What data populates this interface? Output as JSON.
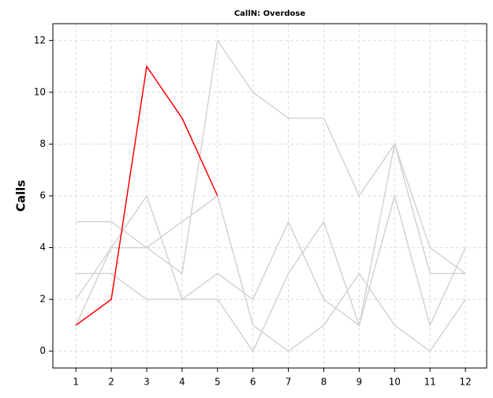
{
  "chart_data": {
    "type": "line",
    "title": "CallN: Overdose",
    "y_label": "Calls",
    "x": [
      1,
      2,
      3,
      4,
      5,
      6,
      7,
      8,
      9,
      10,
      11,
      12
    ],
    "series": [
      {
        "color": "#d3d3d3",
        "values": [
          5,
          5,
          4,
          3,
          12,
          10,
          9,
          9,
          6,
          8,
          3,
          3
        ]
      },
      {
        "color": "#d3d3d3",
        "values": [
          3,
          3,
          2,
          2,
          2,
          0,
          3,
          5,
          1,
          8,
          4,
          3
        ]
      },
      {
        "color": "#d3d3d3",
        "values": [
          2,
          4,
          4,
          5,
          6,
          1,
          0,
          1,
          3,
          1,
          0,
          2
        ]
      },
      {
        "color": "#d3d3d3",
        "values": [
          1,
          4,
          6,
          2,
          3,
          2,
          5,
          2,
          1,
          6,
          1,
          4
        ]
      },
      {
        "color": "#ff0000",
        "values": [
          1,
          2,
          11,
          9,
          6,
          null,
          null,
          null,
          null,
          null,
          null,
          null
        ]
      }
    ],
    "xlim": [
      0.35,
      12.6
    ],
    "ylim": [
      -0.65,
      12.65
    ],
    "xticks": [
      1,
      2,
      3,
      4,
      5,
      6,
      7,
      8,
      9,
      10,
      11,
      12
    ],
    "yticks": [
      0,
      2,
      4,
      6,
      8,
      10,
      12
    ],
    "grid": true
  }
}
